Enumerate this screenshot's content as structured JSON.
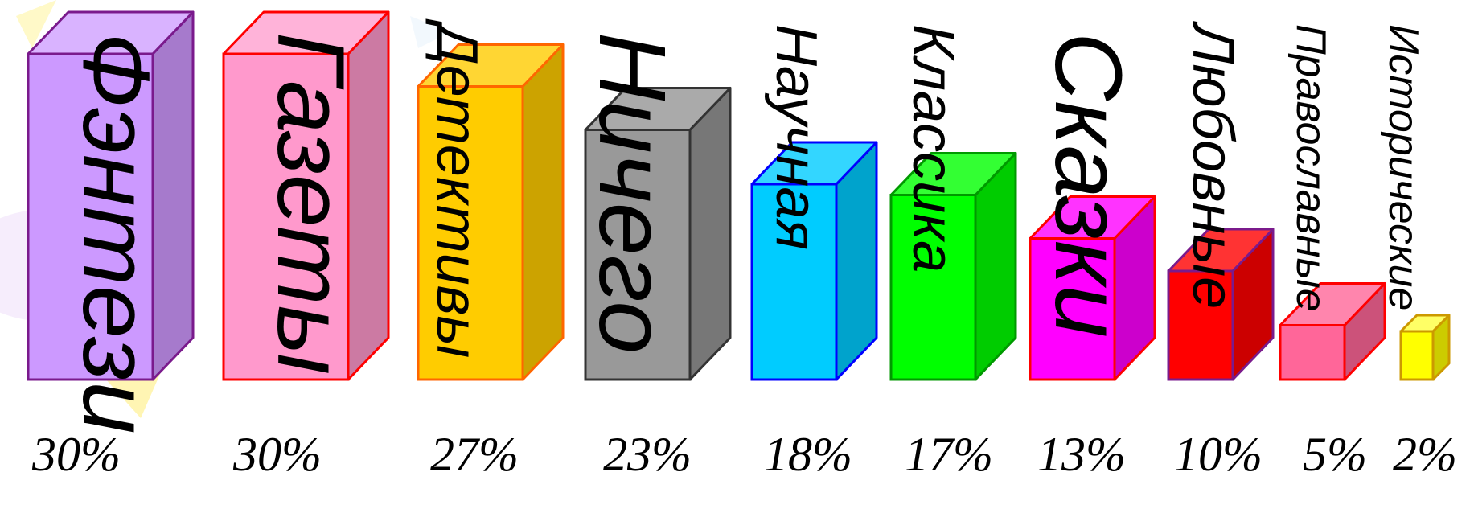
{
  "chart_data": {
    "type": "bar",
    "categories": [
      "Фэнтези",
      "Газеты",
      "Детективы",
      "Ничего",
      "Научная",
      "Классика",
      "Сказки",
      "Любовные",
      "Православные",
      "Исторические"
    ],
    "values": [
      30,
      30,
      27,
      23,
      18,
      17,
      13,
      10,
      5,
      2
    ],
    "value_labels": [
      "30%",
      "30%",
      "27%",
      "23%",
      "18%",
      "17%",
      "13%",
      "10%",
      "5%",
      "2%"
    ],
    "unit": "%",
    "ylim": [
      0,
      30
    ],
    "grid": false,
    "legend": "none",
    "style": "3d-box",
    "series_colors": [
      {
        "front": "#cc99ff",
        "side": "#a67acc",
        "top": "#d9b3ff",
        "edge": "#7a1a8c"
      },
      {
        "front": "#ff99cc",
        "side": "#cc7aa3",
        "top": "#ffb3d9",
        "edge": "#ff0000"
      },
      {
        "front": "#ffcc00",
        "side": "#cca300",
        "top": "#ffd633",
        "edge": "#ff6600"
      },
      {
        "front": "#999999",
        "side": "#777777",
        "top": "#aaaaaa",
        "edge": "#333333"
      },
      {
        "front": "#00ccff",
        "side": "#00a3cc",
        "top": "#33d6ff",
        "edge": "#0000ff"
      },
      {
        "front": "#00ff00",
        "side": "#00cc00",
        "top": "#33ff33",
        "edge": "#009900"
      },
      {
        "front": "#ff00ff",
        "side": "#cc00cc",
        "top": "#ff33ff",
        "edge": "#ff0000"
      },
      {
        "front": "#ff0000",
        "side": "#cc0000",
        "top": "#ff3333",
        "edge": "#7a1a8c"
      },
      {
        "front": "#ff6699",
        "side": "#cc527a",
        "top": "#ff85ad",
        "edge": "#ff0000"
      },
      {
        "front": "#ffff00",
        "side": "#cccc00",
        "top": "#ffff66",
        "edge": "#cc9900"
      }
    ]
  }
}
